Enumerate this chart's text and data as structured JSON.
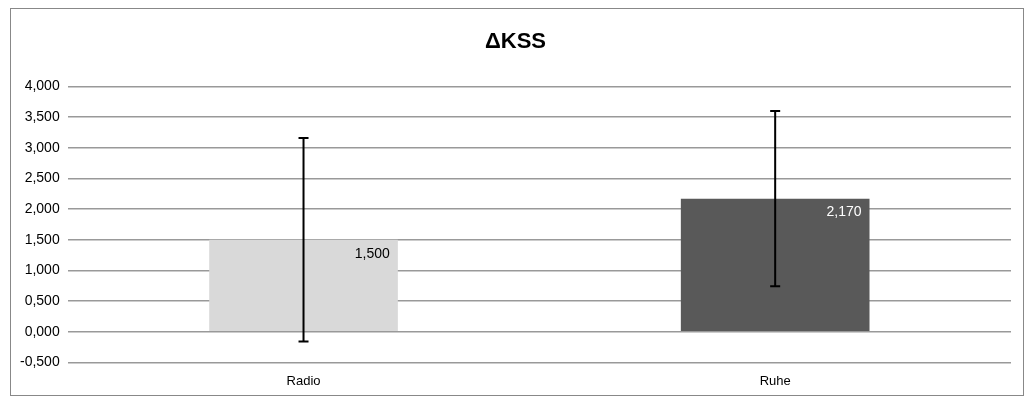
{
  "chart_data": {
    "type": "bar",
    "title": "ΔKSS",
    "categories": [
      "Radio",
      "Ruhe"
    ],
    "values": [
      1.5,
      2.17
    ],
    "colors": [
      "#d9d9d9",
      "#595959"
    ],
    "errors": [
      1.66,
      1.43
    ],
    "value_labels": [
      "1,500",
      "2,170"
    ],
    "ylim": [
      -0.5,
      4
    ],
    "yticks": [
      {
        "value": -0.5,
        "label": "-0,500"
      },
      {
        "value": 0,
        "label": "0,000"
      },
      {
        "value": 0.5,
        "label": "0,500"
      },
      {
        "value": 1,
        "label": "1,000"
      },
      {
        "value": 1.5,
        "label": "1,500"
      },
      {
        "value": 2,
        "label": "2,000"
      },
      {
        "value": 2.5,
        "label": "2,500"
      },
      {
        "value": 3,
        "label": "3,000"
      },
      {
        "value": 3.5,
        "label": "3,500"
      },
      {
        "value": 4,
        "label": "4,000"
      }
    ],
    "grid": "y",
    "legend": false
  }
}
